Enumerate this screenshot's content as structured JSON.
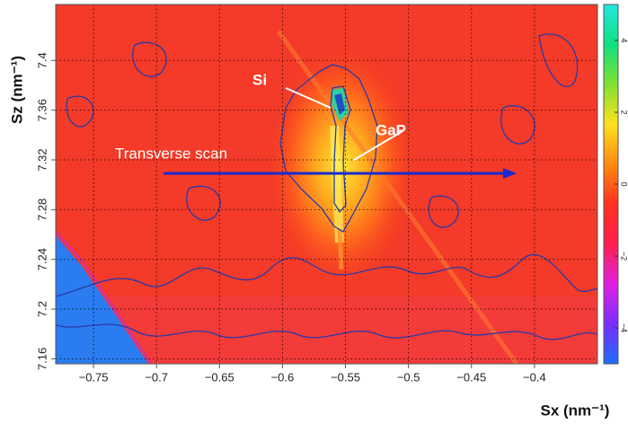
{
  "chart_data": {
    "type": "heatmap",
    "x_label": "Sx (nm⁻¹)",
    "y_label": "Sz (nm⁻¹)",
    "xlim": [
      -0.78,
      -0.35
    ],
    "xticks": [
      {
        "value": -0.75,
        "label": "−0.75"
      },
      {
        "value": -0.7,
        "label": "−0.7"
      },
      {
        "value": -0.65,
        "label": "−0.65"
      },
      {
        "value": -0.6,
        "label": "−0.6"
      },
      {
        "value": -0.55,
        "label": "−0.55"
      },
      {
        "value": -0.5,
        "label": "−0.5"
      },
      {
        "value": -0.45,
        "label": "−0.45"
      },
      {
        "value": -0.4,
        "label": "−0.4"
      }
    ],
    "ylim": [
      7.156,
      7.445
    ],
    "yticks": [
      7.16,
      7.2,
      7.24,
      7.28,
      7.32,
      7.36,
      7.4
    ],
    "grid": true,
    "colorbar": {
      "lim": [
        -5,
        5
      ],
      "ticks": [
        {
          "value": -4,
          "label": "−4"
        },
        {
          "value": -2,
          "label": "−2"
        },
        0,
        2,
        4
      ],
      "colormap": [
        "#1e6cff",
        "#7a2cff",
        "#e020e0",
        "#ff2050",
        "#ff3020",
        "#ff8a10",
        "#ffe020",
        "#80e030",
        "#10e080",
        "#20e8e0"
      ]
    },
    "annotations": [
      "Si",
      "GaP",
      "Transverse scan"
    ]
  }
}
